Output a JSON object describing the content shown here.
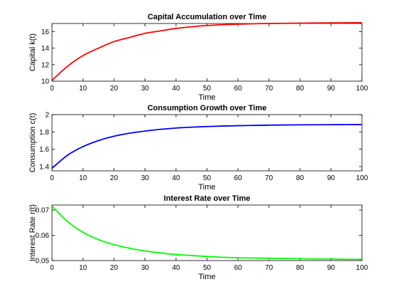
{
  "chart_data": [
    {
      "type": "line",
      "title": "Capital Accumulation over Time",
      "xlabel": "Time",
      "ylabel": "Capital k(t)",
      "xlim": [
        0,
        100
      ],
      "ylim": [
        10,
        17
      ],
      "xticks": [
        0,
        10,
        20,
        30,
        40,
        50,
        60,
        70,
        80,
        90,
        100
      ],
      "yticks": [
        10,
        12,
        14,
        16
      ],
      "ytick_labels": [
        "10",
        "12",
        "14",
        "16"
      ],
      "grid": false,
      "series": [
        {
          "color": "#ff0000",
          "x": [
            0,
            5,
            10,
            15,
            20,
            25,
            30,
            35,
            40,
            45,
            50,
            55,
            60,
            65,
            70,
            75,
            80,
            85,
            90,
            95,
            100
          ],
          "y": [
            10.1,
            11.8,
            13.1,
            14.0,
            14.8,
            15.3,
            15.8,
            16.1,
            16.4,
            16.6,
            16.75,
            16.85,
            16.92,
            16.97,
            17.0,
            17.02,
            17.04,
            17.06,
            17.07,
            17.08,
            17.1
          ]
        }
      ]
    },
    {
      "type": "line",
      "title": "Consumption Growth over Time",
      "xlabel": "Time",
      "ylabel": "Consumption c(t)",
      "xlim": [
        0,
        100
      ],
      "ylim": [
        1.35,
        2.0
      ],
      "xticks": [
        0,
        10,
        20,
        30,
        40,
        50,
        60,
        70,
        80,
        90,
        100
      ],
      "yticks": [
        1.4,
        1.6,
        1.8,
        2.0
      ],
      "ytick_labels": [
        "1.4",
        "1.6",
        "1.8",
        "2"
      ],
      "grid": false,
      "series": [
        {
          "color": "#0000ff",
          "x": [
            0,
            5,
            10,
            15,
            20,
            25,
            30,
            35,
            40,
            45,
            50,
            55,
            60,
            65,
            70,
            75,
            80,
            85,
            90,
            95,
            100
          ],
          "y": [
            1.38,
            1.53,
            1.63,
            1.7,
            1.75,
            1.785,
            1.81,
            1.83,
            1.845,
            1.855,
            1.862,
            1.868,
            1.872,
            1.875,
            1.878,
            1.88,
            1.882,
            1.883,
            1.884,
            1.885,
            1.886
          ]
        }
      ]
    },
    {
      "type": "line",
      "title": "Interest Rate over Time",
      "xlabel": "Time",
      "ylabel": "Interest Rate r(t)",
      "xlim": [
        0,
        100
      ],
      "ylim": [
        0.05,
        0.072
      ],
      "xticks": [
        0,
        10,
        20,
        30,
        40,
        50,
        60,
        70,
        80,
        90,
        100
      ],
      "yticks": [
        0.05,
        0.06,
        0.07
      ],
      "ytick_labels": [
        "0.05",
        "0.06",
        "0.07"
      ],
      "grid": false,
      "series": [
        {
          "color": "#00ff00",
          "x": [
            0,
            5,
            10,
            15,
            20,
            25,
            30,
            35,
            40,
            45,
            50,
            55,
            60,
            65,
            70,
            75,
            80,
            85,
            90,
            95,
            100
          ],
          "y": [
            0.0715,
            0.0655,
            0.0612,
            0.0583,
            0.0563,
            0.0549,
            0.0538,
            0.053,
            0.0524,
            0.052,
            0.0516,
            0.0513,
            0.0511,
            0.051,
            0.0509,
            0.0508,
            0.0507,
            0.0506,
            0.0506,
            0.0505,
            0.0505
          ]
        }
      ]
    }
  ]
}
